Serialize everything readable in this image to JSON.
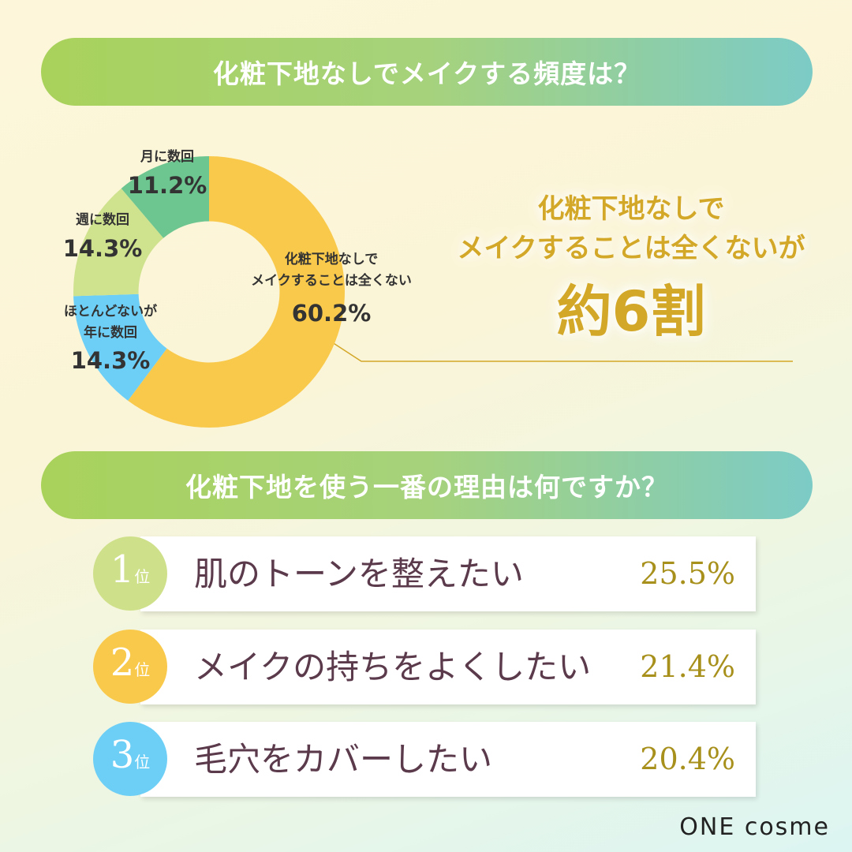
{
  "header1": "化粧下地なしでメイクする頻度は？",
  "chart_data": {
    "type": "pie",
    "categories": [
      "化粧下地なしで\nメイクすることは全くない",
      "ほとんどないが\n年に数回",
      "週に数回",
      "月に数回"
    ],
    "values": [
      60.2,
      14.3,
      14.3,
      11.2
    ],
    "value_labels": [
      "60.2%",
      "14.3%",
      "14.3%",
      "11.2%"
    ],
    "colors": [
      "#f9c94b",
      "#6dcff6",
      "#cfe28e",
      "#6dc590"
    ],
    "hole": 0.52
  },
  "callout": {
    "text": "化粧下地なしで\nメイクすることは全くないが",
    "highlight": "約6割"
  },
  "header2": "化粧下地を使う一番の理由は何ですか？",
  "ranking": {
    "rank_suffix": "位",
    "items": [
      {
        "rank": "1",
        "reason": "肌のトーンを整えたい",
        "percent": "25.5%"
      },
      {
        "rank": "2",
        "reason": "メイクの持ちをよくしたい",
        "percent": "21.4%"
      },
      {
        "rank": "3",
        "reason": "毛穴をカバーしたい",
        "percent": "20.4%"
      }
    ]
  },
  "logo": "ONE cosme"
}
